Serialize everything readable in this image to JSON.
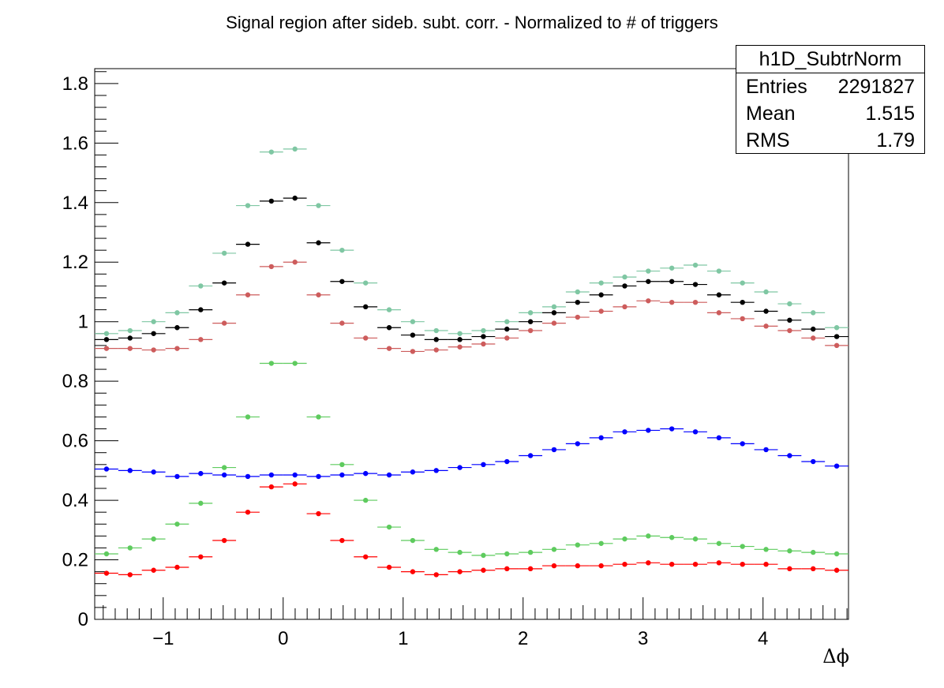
{
  "title": "Signal region after sideb. subt. corr. - Normalized to # of triggers",
  "stats": {
    "name": "h1D_SubtrNorm",
    "entries_label": "Entries",
    "entries_value": "2291827",
    "mean_label": "Mean",
    "mean_value": "1.515",
    "rms_label": "RMS",
    "rms_value": "1.79"
  },
  "chart_data": {
    "type": "scatter",
    "title": "Signal region after sideb. subt. corr. - Normalized to # of triggers",
    "xlabel": "Δϕ",
    "ylabel": "",
    "xlim": [
      -1.5708,
      4.7124
    ],
    "ylim": [
      0,
      1.85
    ],
    "x_ticks": [
      "−1",
      "0",
      "1",
      "2",
      "3",
      "4"
    ],
    "y_ticks": [
      "0",
      "0.2",
      "0.4",
      "0.6",
      "0.8",
      "1",
      "1.2",
      "1.4",
      "1.6",
      "1.8"
    ],
    "grid": false,
    "bins": 32,
    "series": [
      {
        "color": "#7fc7a3",
        "values": [
          0.96,
          0.97,
          1.0,
          1.03,
          1.12,
          1.23,
          1.39,
          1.57,
          1.58,
          1.39,
          1.24,
          1.13,
          1.04,
          1.0,
          0.97,
          0.96,
          0.97,
          1.0,
          1.03,
          1.05,
          1.1,
          1.13,
          1.15,
          1.17,
          1.18,
          1.19,
          1.17,
          1.13,
          1.1,
          1.06,
          1.03,
          0.98
        ]
      },
      {
        "color": "#000000",
        "values": [
          0.94,
          0.945,
          0.96,
          0.98,
          1.04,
          1.13,
          1.26,
          1.405,
          1.415,
          1.265,
          1.135,
          1.05,
          0.98,
          0.955,
          0.94,
          0.94,
          0.95,
          0.975,
          1.0,
          1.03,
          1.065,
          1.09,
          1.12,
          1.135,
          1.135,
          1.125,
          1.09,
          1.065,
          1.035,
          1.005,
          0.975,
          0.95
        ]
      },
      {
        "color": "#cd5c5c",
        "values": [
          0.91,
          0.91,
          0.905,
          0.91,
          0.94,
          0.995,
          1.09,
          1.185,
          1.2,
          1.09,
          0.995,
          0.945,
          0.91,
          0.9,
          0.905,
          0.915,
          0.925,
          0.945,
          0.97,
          0.995,
          1.015,
          1.035,
          1.05,
          1.07,
          1.065,
          1.065,
          1.03,
          1.01,
          0.985,
          0.97,
          0.945,
          0.92
        ]
      },
      {
        "color": "#5ecb5e",
        "values": [
          0.22,
          0.24,
          0.27,
          0.32,
          0.39,
          0.51,
          0.68,
          0.86,
          0.86,
          0.68,
          0.52,
          0.4,
          0.31,
          0.265,
          0.235,
          0.225,
          0.215,
          0.22,
          0.225,
          0.235,
          0.25,
          0.255,
          0.27,
          0.28,
          0.275,
          0.27,
          0.255,
          0.245,
          0.235,
          0.23,
          0.225,
          0.22
        ]
      },
      {
        "color": "#0000ff",
        "values": [
          0.505,
          0.5,
          0.495,
          0.48,
          0.49,
          0.485,
          0.48,
          0.485,
          0.485,
          0.48,
          0.485,
          0.49,
          0.485,
          0.495,
          0.5,
          0.51,
          0.52,
          0.53,
          0.55,
          0.57,
          0.59,
          0.61,
          0.63,
          0.635,
          0.64,
          0.63,
          0.61,
          0.59,
          0.57,
          0.55,
          0.53,
          0.515
        ]
      },
      {
        "color": "#ff0000",
        "values": [
          0.155,
          0.15,
          0.165,
          0.175,
          0.21,
          0.265,
          0.36,
          0.445,
          0.455,
          0.355,
          0.265,
          0.21,
          0.175,
          0.16,
          0.15,
          0.16,
          0.165,
          0.17,
          0.17,
          0.18,
          0.18,
          0.18,
          0.185,
          0.19,
          0.185,
          0.185,
          0.19,
          0.185,
          0.185,
          0.17,
          0.17,
          0.165
        ]
      }
    ]
  }
}
